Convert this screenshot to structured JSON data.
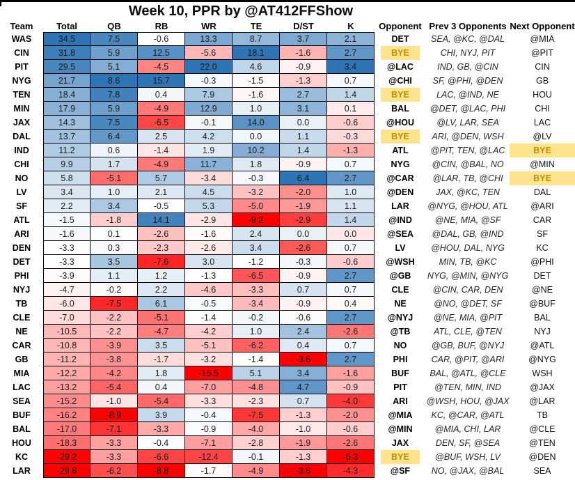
{
  "title": "Week 10, PPR by @AT412FFShow",
  "columns": [
    "Team",
    "Total",
    "QB",
    "RB",
    "WR",
    "TE",
    "D/ST",
    "K",
    "Opponent",
    "Prev 3 Opponents",
    "Next Opponent"
  ],
  "bye_label": "BYE",
  "colors": {
    "heat_max_blue": "#2E75B6",
    "heat_min_red": "#FF0000",
    "heat_mid": "#FFFFFF",
    "bye_bg": "#FFE48D",
    "bye_text": "#BF8F00",
    "grid_border": "#000000"
  },
  "chart_data": {
    "type": "heatmap",
    "title": "Week 10, PPR by @AT412FFShow",
    "heat_columns": [
      "Total",
      "QB",
      "RB",
      "WR",
      "TE",
      "D/ST",
      "K"
    ],
    "color_scale": {
      "min_color": "#FF0000",
      "mid_color": "#FFFFFF",
      "max_color": "#2E75B6",
      "scaling": "per-column: min=red, 50th percentile=white, max=blue"
    },
    "rows": [
      {
        "team": "WAS",
        "values": [
          34.5,
          7.5,
          -0.6,
          13.3,
          8.7,
          3.7,
          2.1
        ],
        "opponent": "DET",
        "prev3_opponents": "SEA, @KC, @DAL",
        "next_opponent": "@MIA"
      },
      {
        "team": "CIN",
        "values": [
          31.8,
          5.9,
          12.5,
          -5.6,
          18.1,
          -1.6,
          2.7
        ],
        "opponent": "BYE",
        "prev3_opponents": "CHI, NYJ, PIT",
        "next_opponent": "@PIT"
      },
      {
        "team": "PIT",
        "values": [
          29.5,
          5.1,
          -4.5,
          22.0,
          4.6,
          -0.9,
          3.4
        ],
        "opponent": "@LAC",
        "prev3_opponents": "IND, GB, @CIN",
        "next_opponent": "CIN"
      },
      {
        "team": "NYG",
        "values": [
          21.7,
          8.6,
          15.7,
          -0.3,
          -1.5,
          -1.3,
          0.7
        ],
        "opponent": "@CHI",
        "prev3_opponents": "SF, @PHI, @DEN",
        "next_opponent": "GB"
      },
      {
        "team": "TEN",
        "values": [
          18.4,
          7.8,
          0.4,
          7.9,
          -1.6,
          2.7,
          1.4
        ],
        "opponent": "BYE",
        "prev3_opponents": "LAC, @IND, NE",
        "next_opponent": "HOU"
      },
      {
        "team": "MIN",
        "values": [
          17.9,
          5.9,
          -4.9,
          12.9,
          1.0,
          3.1,
          0.1
        ],
        "opponent": "BAL",
        "prev3_opponents": "@DET, @LAC, PHI",
        "next_opponent": "CHI"
      },
      {
        "team": "JAX",
        "values": [
          14.3,
          7.5,
          -6.5,
          -0.1,
          14.0,
          0.0,
          -0.6
        ],
        "opponent": "@HOU",
        "prev3_opponents": "@LV, LAR, SEA",
        "next_opponent": "LAC"
      },
      {
        "team": "DAL",
        "values": [
          13.7,
          6.4,
          2.5,
          4.2,
          0.0,
          1.1,
          -0.3
        ],
        "opponent": "BYE",
        "prev3_opponents": "ARI, @DEN, WSH",
        "next_opponent": "@LV"
      },
      {
        "team": "IND",
        "values": [
          11.2,
          0.6,
          -1.4,
          1.9,
          10.2,
          1.4,
          -1.3
        ],
        "opponent": "ATL",
        "prev3_opponents": "@PIT, TEN, @LAC",
        "next_opponent": "BYE"
      },
      {
        "team": "CHI",
        "values": [
          9.9,
          1.7,
          -4.9,
          11.7,
          1.8,
          -0.9,
          0.7
        ],
        "opponent": "NYG",
        "prev3_opponents": "@CIN, @BAL, NO",
        "next_opponent": "@MIN"
      },
      {
        "team": "NO",
        "values": [
          5.8,
          -5.1,
          5.7,
          -3.4,
          -0.3,
          6.4,
          2.7
        ],
        "opponent": "@CAR",
        "prev3_opponents": "@LAR, TB, @CHI",
        "next_opponent": "BYE"
      },
      {
        "team": "LV",
        "values": [
          3.4,
          1.0,
          2.1,
          4.5,
          -3.2,
          -2.0,
          1.0
        ],
        "opponent": "@DEN",
        "prev3_opponents": "JAX, @KC, TEN",
        "next_opponent": "DAL"
      },
      {
        "team": "SF",
        "values": [
          2.2,
          3.4,
          -0.5,
          5.3,
          -5.0,
          -1.9,
          1.1
        ],
        "opponent": "LAR",
        "prev3_opponents": "@NYG, @HOU, ATL",
        "next_opponent": "@ARI"
      },
      {
        "team": "ATL",
        "values": [
          -1.5,
          -1.8,
          14.1,
          -2.9,
          -9.2,
          -2.9,
          1.4
        ],
        "opponent": "@IND",
        "prev3_opponents": "@NE, MIA, @SF",
        "next_opponent": "CAR"
      },
      {
        "team": "ARI",
        "values": [
          -1.6,
          0.1,
          -2.6,
          -1.6,
          2.4,
          0.0,
          0.0
        ],
        "opponent": "@SEA",
        "prev3_opponents": "@DAL, GB, @IND",
        "next_opponent": "SF"
      },
      {
        "team": "DEN",
        "values": [
          -3.3,
          0.3,
          -2.3,
          -2.6,
          3.4,
          -2.6,
          0.7
        ],
        "opponent": "LV",
        "prev3_opponents": "@HOU, DAL, NYG",
        "next_opponent": "KC"
      },
      {
        "team": "DET",
        "values": [
          -3.3,
          3.5,
          -7.6,
          3.0,
          -1.2,
          -0.3,
          -0.6
        ],
        "opponent": "@WSH",
        "prev3_opponents": "MIN, TB, @KC",
        "next_opponent": "@PHI"
      },
      {
        "team": "PHI",
        "values": [
          -3.9,
          1.1,
          1.2,
          -1.3,
          -6.5,
          -0.9,
          2.7
        ],
        "opponent": "@GB",
        "prev3_opponents": "NYG, @MIN, @NYG",
        "next_opponent": "DET"
      },
      {
        "team": "NYJ",
        "values": [
          -4.7,
          -0.2,
          2.2,
          -4.6,
          -3.3,
          0.7,
          0.7
        ],
        "opponent": "CLE",
        "prev3_opponents": "@CIN, CAR, DEN",
        "next_opponent": "@NE"
      },
      {
        "team": "TB",
        "values": [
          -6.0,
          -7.5,
          6.1,
          -0.5,
          -3.4,
          -0.9,
          0.4
        ],
        "opponent": "NE",
        "prev3_opponents": "@NO, @DET, SF",
        "next_opponent": "@BUF"
      },
      {
        "team": "CLE",
        "values": [
          -7.0,
          -2.2,
          -5.1,
          -1.4,
          -0.2,
          -0.6,
          2.7
        ],
        "opponent": "@NYJ",
        "prev3_opponents": "@NE, MIA, @PIT",
        "next_opponent": "BAL"
      },
      {
        "team": "NE",
        "values": [
          -10.5,
          -2.2,
          -4.7,
          -4.2,
          1.0,
          2.4,
          -2.6
        ],
        "opponent": "@TB",
        "prev3_opponents": "ATL, CLE, @TEN",
        "next_opponent": "NYJ"
      },
      {
        "team": "CAR",
        "values": [
          -10.8,
          -3.9,
          3.5,
          -5.1,
          -6.2,
          0.4,
          0.7
        ],
        "opponent": "NO",
        "prev3_opponents": "@GB, BUF, @NYJ",
        "next_opponent": "@ATL"
      },
      {
        "team": "GB",
        "values": [
          -11.2,
          -3.8,
          -1.7,
          -3.2,
          -1.4,
          -3.6,
          2.7
        ],
        "opponent": "PHI",
        "prev3_opponents": "CAR, @PIT, @ARI",
        "next_opponent": "@NYG"
      },
      {
        "team": "MIA",
        "values": [
          -12.2,
          -4.2,
          1.8,
          -16.5,
          5.1,
          3.4,
          -1.6
        ],
        "opponent": "BUF",
        "prev3_opponents": "BAL, @ATL, @CLE",
        "next_opponent": "WSH"
      },
      {
        "team": "LAC",
        "values": [
          -13.2,
          -5.4,
          0.4,
          -7.0,
          -4.8,
          4.7,
          -0.9
        ],
        "opponent": "PIT",
        "prev3_opponents": "@TEN, MIN, IND",
        "next_opponent": "@JAX"
      },
      {
        "team": "SEA",
        "values": [
          -15.2,
          -1.0,
          -5.4,
          -3.3,
          -2.3,
          0.7,
          -4.0
        ],
        "opponent": "ARI",
        "prev3_opponents": "@WSH, HOU, @JAX",
        "next_opponent": "@LAR"
      },
      {
        "team": "BUF",
        "values": [
          -16.2,
          -8.9,
          3.9,
          -0.4,
          -7.5,
          -1.3,
          -2.0
        ],
        "opponent": "@MIA",
        "prev3_opponents": "KC, @CAR, @ATL",
        "next_opponent": "TB"
      },
      {
        "team": "BAL",
        "values": [
          -17.0,
          -7.1,
          -3.3,
          -0.9,
          -4.0,
          -1.0,
          -0.6
        ],
        "opponent": "@MIN",
        "prev3_opponents": "@MIA, CHI, LAR",
        "next_opponent": "@CLE"
      },
      {
        "team": "HOU",
        "values": [
          -18.3,
          -3.3,
          -0.4,
          -7.1,
          -2.8,
          -1.9,
          -2.6
        ],
        "opponent": "JAX",
        "prev3_opponents": "DEN, SF, @SEA",
        "next_opponent": "@TEN"
      },
      {
        "team": "KC",
        "values": [
          -29.2,
          -3.3,
          -6.6,
          -12.4,
          -0.1,
          -1.3,
          -5.3
        ],
        "opponent": "BYE",
        "prev3_opponents": "@BUF, WSH, LV",
        "next_opponent": "@DEN"
      },
      {
        "team": "LAR",
        "values": [
          -29.6,
          -6.2,
          -8.8,
          -1.7,
          -4.9,
          -3.6,
          -4.3
        ],
        "opponent": "@SF",
        "prev3_opponents": "NO, @JAX, @BAL",
        "next_opponent": "SEA"
      }
    ]
  }
}
